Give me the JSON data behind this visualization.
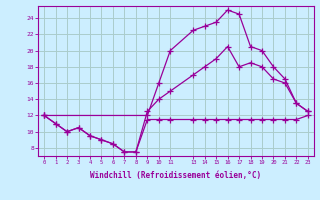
{
  "xlabel": "Windchill (Refroidissement éolien,°C)",
  "bg_color": "#cceeff",
  "grid_color": "#aacccc",
  "line_color": "#990099",
  "xticks": [
    0,
    1,
    2,
    3,
    4,
    5,
    6,
    7,
    8,
    9,
    10,
    11,
    13,
    14,
    15,
    16,
    17,
    18,
    19,
    20,
    21,
    22,
    23
  ],
  "yticks": [
    8,
    10,
    12,
    14,
    16,
    18,
    20,
    22,
    24
  ],
  "xlim": [
    -0.5,
    23.5
  ],
  "ylim": [
    7.0,
    25.5
  ],
  "line1_x": [
    0,
    1,
    2,
    3,
    4,
    5,
    6,
    7,
    8,
    9,
    10,
    11,
    13,
    14,
    15,
    16,
    17,
    18,
    19,
    20,
    21,
    22,
    23
  ],
  "line1_y": [
    12,
    11,
    10,
    10.5,
    9.5,
    9.0,
    8.5,
    7.5,
    7.5,
    11.5,
    11.5,
    11.5,
    11.5,
    11.5,
    11.5,
    11.5,
    11.5,
    11.5,
    11.5,
    11.5,
    11.5,
    11.5,
    12.0
  ],
  "line2_x": [
    0,
    1,
    2,
    3,
    4,
    5,
    6,
    7,
    8,
    9,
    10,
    11,
    13,
    14,
    15,
    16,
    17,
    18,
    19,
    20,
    21,
    22,
    23
  ],
  "line2_y": [
    12,
    11,
    10,
    10.5,
    9.5,
    9.0,
    8.5,
    7.5,
    7.5,
    12.5,
    14,
    15,
    17,
    18,
    19,
    20.5,
    18,
    18.5,
    18,
    16.5,
    16,
    13.5,
    12.5
  ],
  "line3_x": [
    0,
    9,
    10,
    11,
    13,
    14,
    15,
    16,
    17,
    18,
    19,
    20,
    21,
    22,
    23
  ],
  "line3_y": [
    12,
    12.0,
    16.0,
    20.0,
    22.5,
    23,
    23.5,
    25,
    24.5,
    20.5,
    20,
    18,
    16.5,
    13.5,
    12.5
  ]
}
